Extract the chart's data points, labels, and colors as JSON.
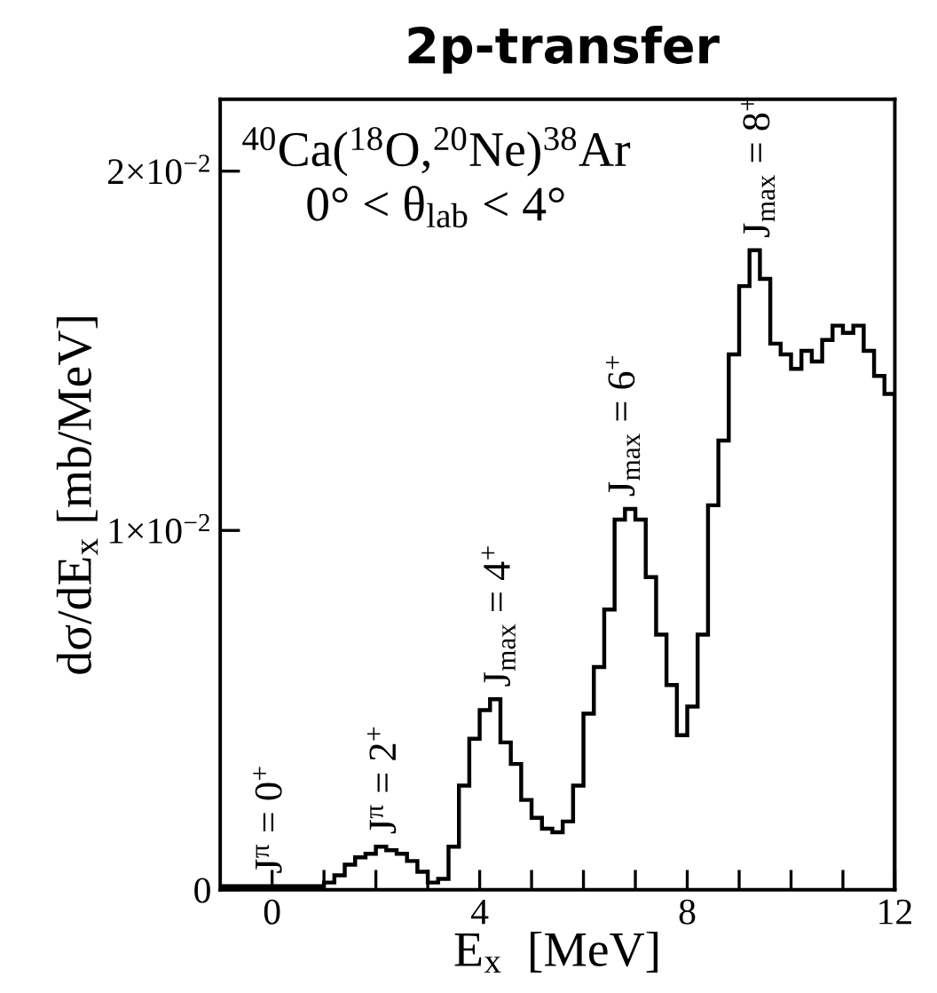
{
  "chart_data": {
    "type": "histogram",
    "title": "2p-transfer",
    "xlabel": "E$_{x}$  [MeV]",
    "ylabel": "dσ/dE$_{x}$ [mb/MeV]",
    "bins": [
      -1.0,
      -0.8,
      -0.6,
      -0.4,
      -0.2,
      0.0,
      0.2,
      0.4,
      0.6,
      0.8,
      1.0,
      1.2,
      1.4,
      1.6,
      1.8,
      2.0,
      2.2,
      2.4,
      2.6,
      2.8,
      3.0,
      3.2,
      3.4,
      3.6,
      3.8,
      4.0,
      4.2,
      4.4,
      4.6,
      4.8,
      5.0,
      5.2,
      5.4,
      5.6,
      5.8,
      6.0,
      6.2,
      6.4,
      6.6,
      6.8,
      7.0,
      7.2,
      7.4,
      7.6,
      7.8,
      8.0,
      8.2,
      8.4,
      8.6,
      8.8,
      9.0,
      9.2,
      9.4,
      9.6,
      9.8,
      10.0,
      10.2,
      10.4,
      10.6,
      10.8,
      11.0,
      11.2,
      11.4,
      11.6,
      11.8,
      12.0
    ],
    "values": [
      0.0001,
      0.0001,
      0.0001,
      0.0001,
      0.0001,
      0.0001,
      0.0001,
      0.0001,
      0.0001,
      0.0001,
      0.0002,
      0.0004,
      0.0007,
      0.0009,
      0.001,
      0.0012,
      0.0011,
      0.001,
      0.0008,
      0.0005,
      0.0002,
      0.0003,
      0.0012,
      0.0029,
      0.0042,
      0.005,
      0.0053,
      0.0041,
      0.0035,
      0.0025,
      0.002,
      0.0017,
      0.0016,
      0.0019,
      0.0029,
      0.0049,
      0.0062,
      0.0078,
      0.0103,
      0.0106,
      0.0103,
      0.0087,
      0.0071,
      0.0057,
      0.0043,
      0.0051,
      0.0071,
      0.0107,
      0.0125,
      0.0149,
      0.0168,
      0.0178,
      0.017,
      0.0152,
      0.0149,
      0.0145,
      0.015,
      0.0147,
      0.0153,
      0.0157,
      0.0155,
      0.0157,
      0.015,
      0.0143,
      0.0138
    ],
    "color": "#000000",
    "xlim": [
      -1,
      12
    ],
    "ylim": [
      0,
      0.022
    ],
    "xticks": [
      0,
      {
        "value": 1,
        "label": null
      },
      {
        "value": 2,
        "label": null
      },
      {
        "value": 3,
        "label": null
      },
      4,
      {
        "value": 5,
        "label": null
      },
      {
        "value": 6,
        "label": null
      },
      {
        "value": 7,
        "label": null
      },
      8,
      {
        "value": 9,
        "label": null
      },
      {
        "value": 10,
        "label": null
      },
      {
        "value": 11,
        "label": null
      },
      12
    ],
    "yticks": [
      0,
      {
        "value": 0.01,
        "label": "1×10$^{−2}$"
      },
      {
        "value": 0.02,
        "label": "2×10$^{−2}$"
      }
    ],
    "grid": false,
    "legend": false,
    "annotations": [
      "$^{40}$Ca($^{18}$O,$^{20}$Ne)$^{38}$Ar",
      "0° < θ$_{lab}$ < 4°",
      {
        "text": "J$^{π}$ = 0$^{+}$",
        "x": 0,
        "y": 0.0001
      },
      {
        "text": "J$^{π}$ = 2$^{+}$",
        "x": 2.2,
        "y": 0.0012
      },
      {
        "text": "J$_{max}$ = 4$^{+}$",
        "x": 4.4,
        "y": 0.0053
      },
      {
        "text": "J$_{max}$ = 6$^{+}$",
        "x": 6.8,
        "y": 0.0106
      },
      {
        "text": "J$_{max}$ = 8$^{+}$",
        "x": 9.4,
        "y": 0.0178
      }
    ]
  }
}
